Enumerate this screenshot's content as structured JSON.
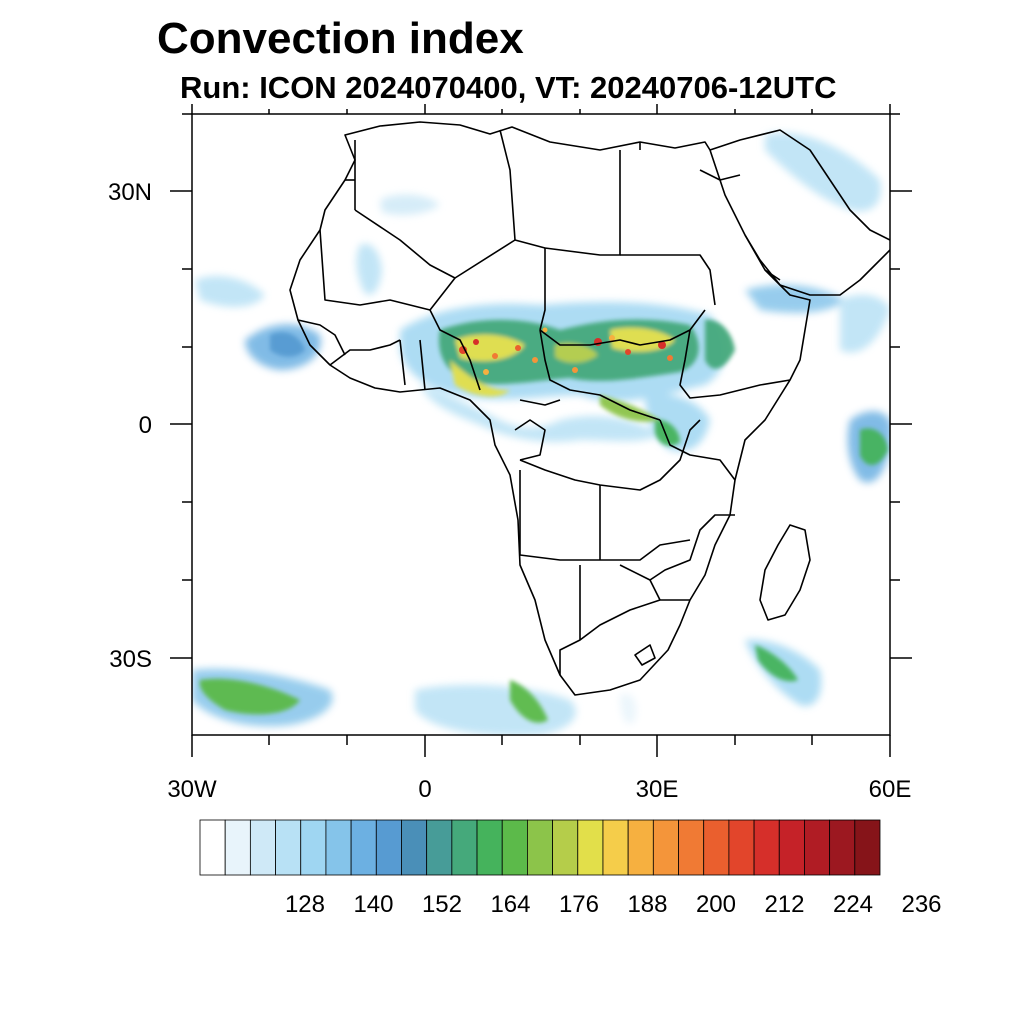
{
  "title": "Convection index",
  "subtitle": "Run: ICON 2024070400,  VT: 20240706-12UTC",
  "map": {
    "region": "Africa",
    "lon_range": [
      -30,
      60
    ],
    "lat_range": [
      -40,
      40
    ],
    "lat_ticks": [
      {
        "value": 30,
        "label": "30N"
      },
      {
        "value": 0,
        "label": "0"
      },
      {
        "value": -30,
        "label": "30S"
      }
    ],
    "lon_ticks": [
      {
        "value": -30,
        "label": "30W"
      },
      {
        "value": 0,
        "label": "0"
      },
      {
        "value": 30,
        "label": "30E"
      },
      {
        "value": 60,
        "label": "60E"
      }
    ]
  },
  "colorbar": {
    "labels": [
      "128",
      "140",
      "152",
      "164",
      "176",
      "188",
      "200",
      "212",
      "224",
      "236"
    ],
    "colors": [
      "#ffffff",
      "#e8f4fb",
      "#cfe9f7",
      "#b8e1f5",
      "#9fd6f2",
      "#85c4ea",
      "#6cb0e2",
      "#579bd2",
      "#4a8fb8",
      "#479c98",
      "#45a97b",
      "#45b35c",
      "#5cba4a",
      "#8cc44a",
      "#b5cd4a",
      "#e2df4a",
      "#f5cd4a",
      "#f6b040",
      "#f4953a",
      "#f07a34",
      "#ea5f2e",
      "#e2452b",
      "#d62f2a",
      "#c52228",
      "#b01c24",
      "#9c1820",
      "#861419"
    ]
  }
}
